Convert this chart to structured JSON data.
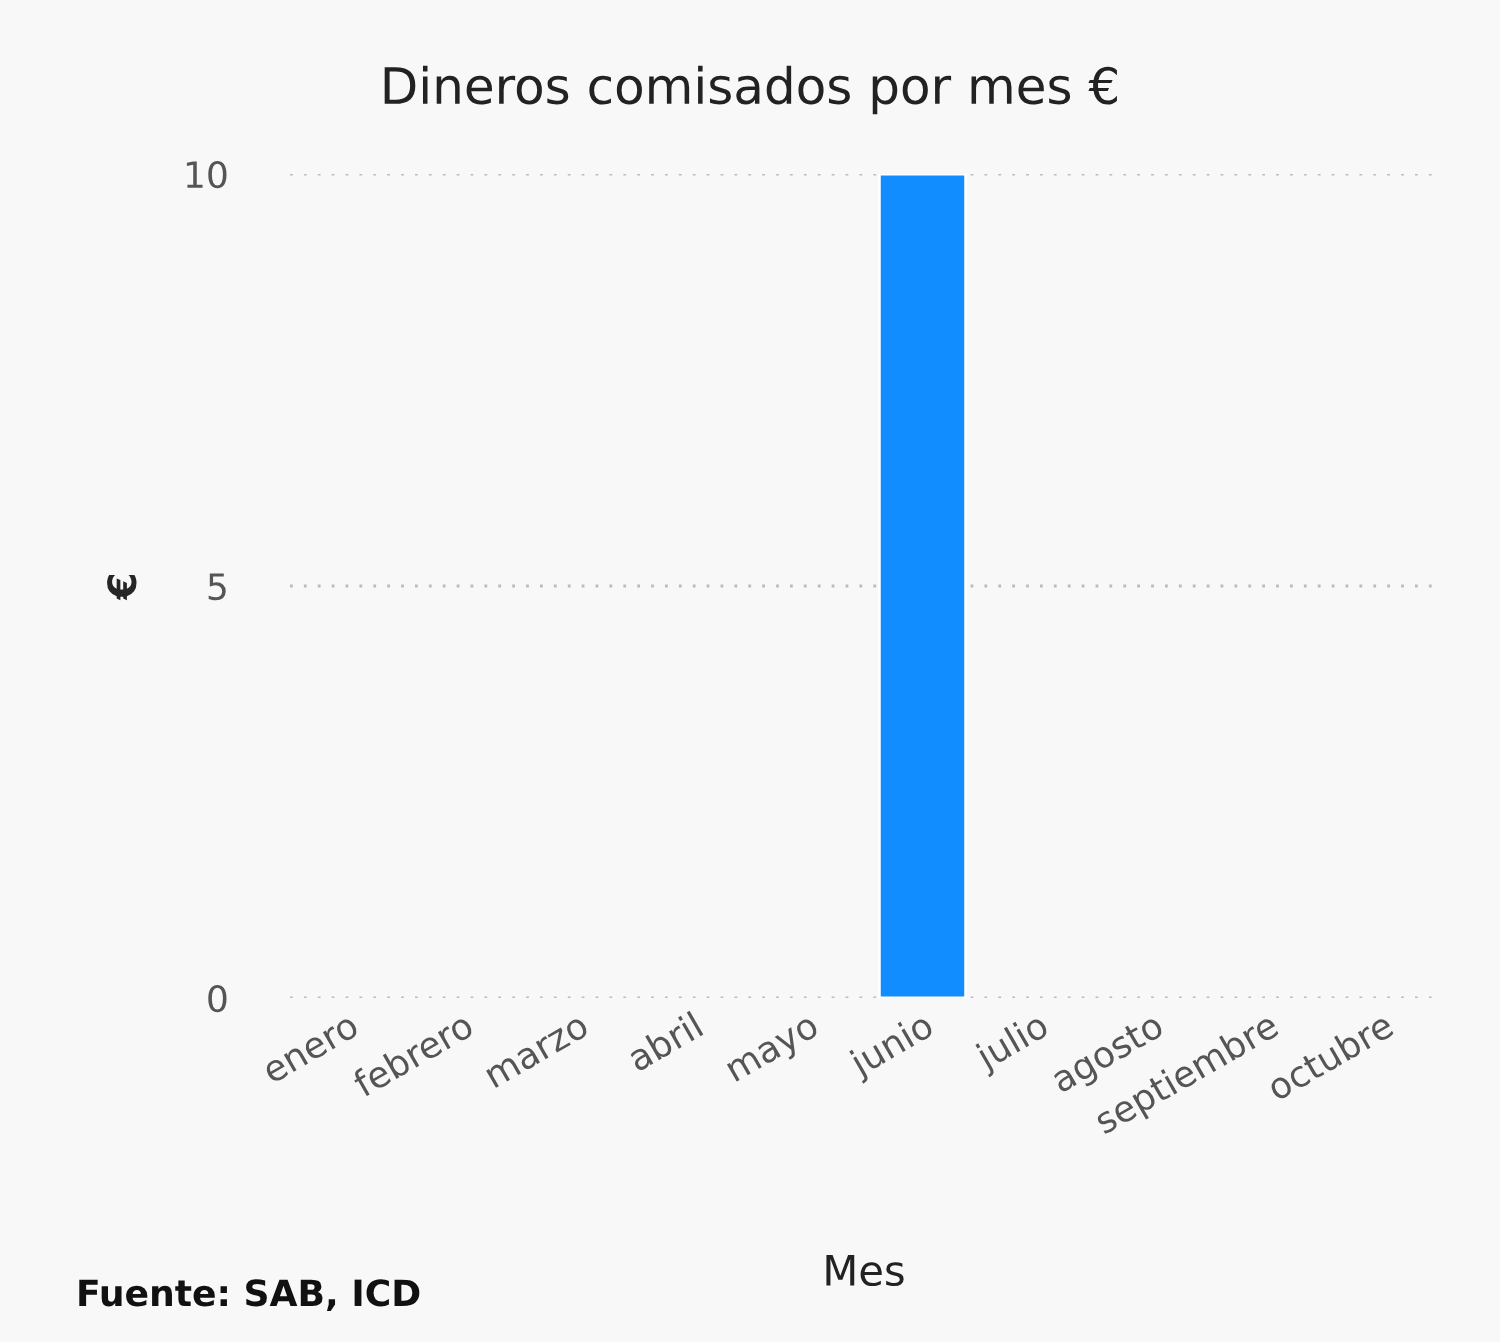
{
  "chart_data": {
    "type": "bar",
    "title": "Dineros comisados por mes €",
    "xlabel": "Mes",
    "ylabel": "€",
    "categories": [
      "enero",
      "febrero",
      "marzo",
      "abril",
      "mayo",
      "junio",
      "julio",
      "agosto",
      "septiembre",
      "octubre"
    ],
    "values": [
      null,
      null,
      null,
      null,
      null,
      10,
      null,
      null,
      null,
      null
    ],
    "color": "#118dff",
    "ylim": [
      0,
      10
    ],
    "yticks": [
      0,
      5,
      10
    ],
    "grid": "y",
    "annotations": [
      "Fuente: SAB, ICD"
    ]
  }
}
